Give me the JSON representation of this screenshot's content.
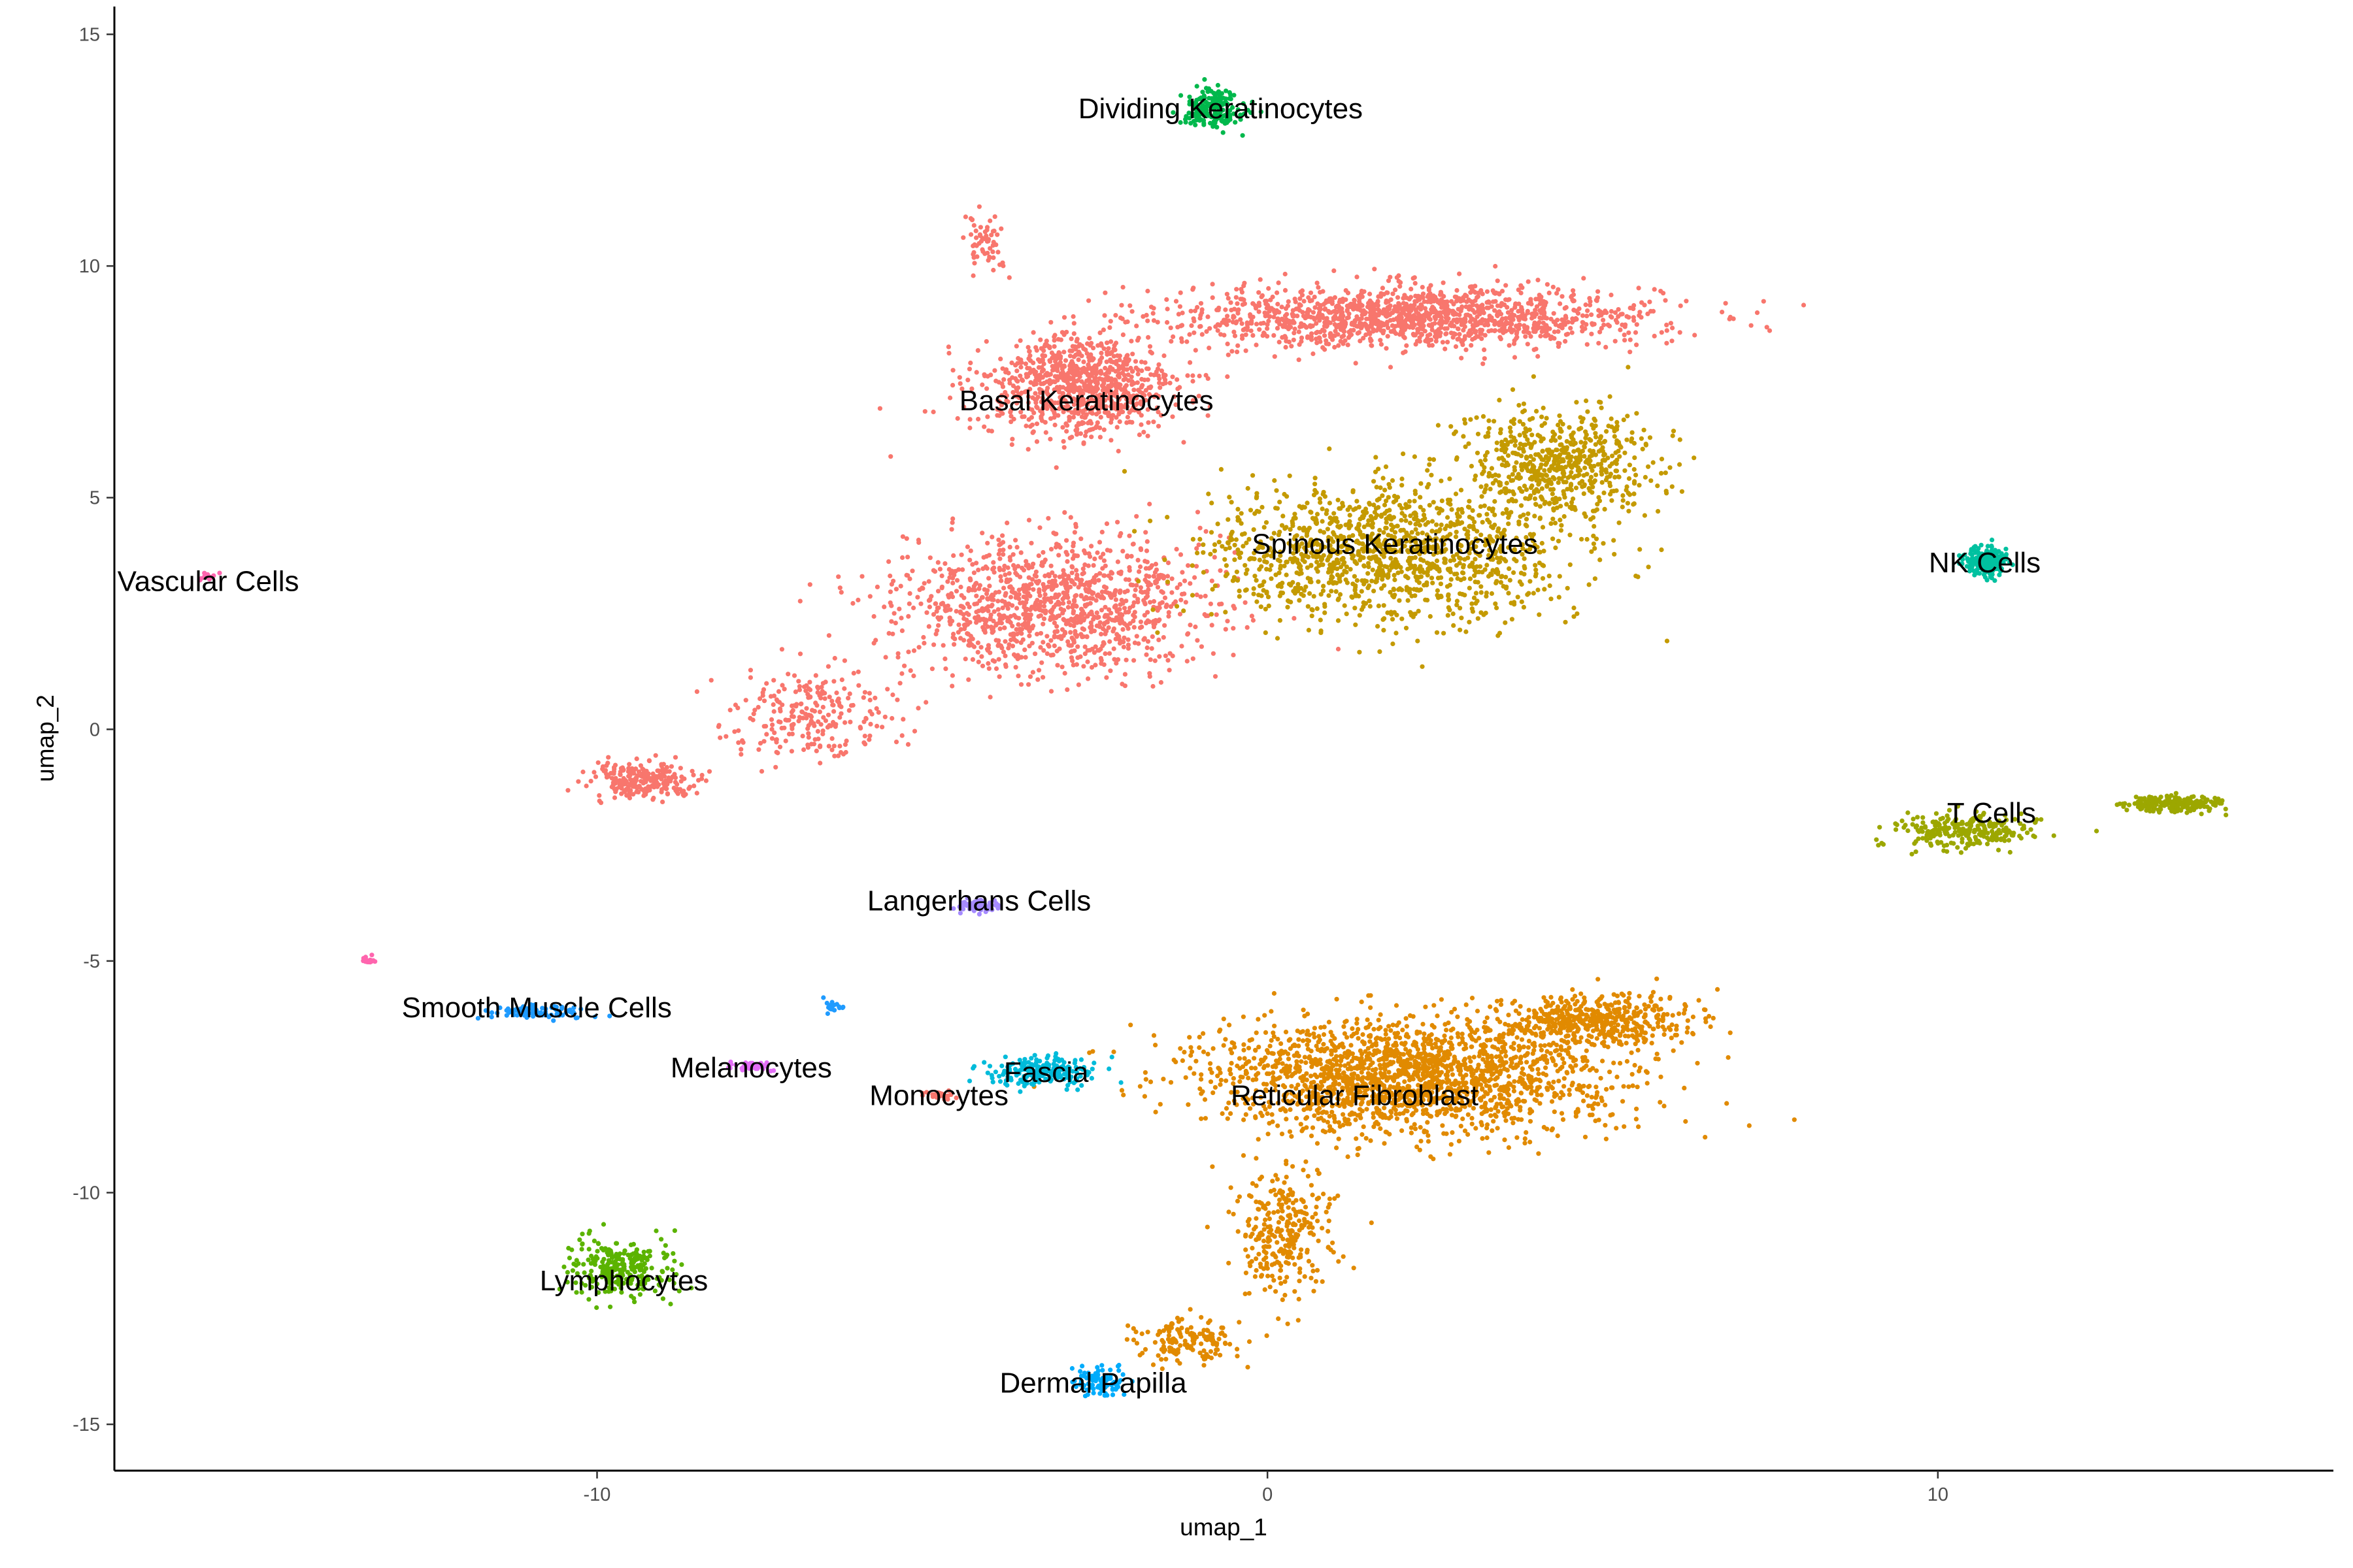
{
  "chart_data": {
    "type": "scatter",
    "title": "",
    "xlabel": "umap_1",
    "ylabel": "umap_2",
    "xlim": [
      -17.2,
      15.9
    ],
    "ylim": [
      -16.0,
      15.6
    ],
    "x_ticks": [
      -10,
      0,
      10
    ],
    "y_ticks": [
      15,
      10,
      5,
      0,
      -5,
      -10,
      -15
    ],
    "x_tick_labels": [
      "-10",
      "0",
      "10"
    ],
    "y_tick_labels": [
      "15",
      "10",
      "5",
      "0",
      "-5",
      "-10",
      "-15"
    ],
    "grid": false,
    "legend": "none",
    "clusters": [
      {
        "name": "Basal Keratinocytes",
        "color": "#F8766D",
        "label_x": -2.7,
        "label_y": 7.1,
        "regions": [
          {
            "cx": 2.2,
            "cy": 8.9,
            "sx": 3.0,
            "sy": 0.55,
            "n": 1400
          },
          {
            "cx": -2.8,
            "cy": 7.4,
            "sx": 1.2,
            "sy": 0.9,
            "n": 900
          },
          {
            "cx": -3.2,
            "cy": 2.7,
            "sx": 1.9,
            "sy": 1.2,
            "n": 1200
          },
          {
            "cx": -6.8,
            "cy": 0.4,
            "sx": 1.0,
            "sy": 0.8,
            "n": 250
          },
          {
            "cx": -9.3,
            "cy": -1.1,
            "sx": 0.7,
            "sy": 0.3,
            "n": 250
          },
          {
            "cx": -4.2,
            "cy": 10.5,
            "sx": 0.25,
            "sy": 0.6,
            "n": 60
          }
        ]
      },
      {
        "name": "Spinous Keratinocytes",
        "color": "#C49A00",
        "label_x": 1.9,
        "label_y": 4.0,
        "regions": [
          {
            "cx": 1.8,
            "cy": 3.8,
            "sx": 2.2,
            "sy": 1.2,
            "n": 1300
          },
          {
            "cx": 4.3,
            "cy": 5.7,
            "sx": 1.2,
            "sy": 1.0,
            "n": 600
          }
        ]
      },
      {
        "name": "Dividing Keratinocytes",
        "color": "#00B84C",
        "label_x": -0.7,
        "label_y": 13.4,
        "regions": [
          {
            "cx": -0.8,
            "cy": 13.4,
            "sx": 0.4,
            "sy": 0.35,
            "n": 180
          }
        ]
      },
      {
        "name": "NK Cells",
        "color": "#00C1A0",
        "label_x": 10.7,
        "label_y": 3.6,
        "regions": [
          {
            "cx": 10.7,
            "cy": 3.6,
            "sx": 0.25,
            "sy": 0.25,
            "n": 200
          }
        ]
      },
      {
        "name": "T Cells",
        "color": "#9CA700",
        "label_x": 10.8,
        "label_y": -1.8,
        "regions": [
          {
            "cx": 10.4,
            "cy": -2.2,
            "sx": 0.9,
            "sy": 0.3,
            "n": 250
          },
          {
            "cx": 13.5,
            "cy": -1.6,
            "sx": 0.6,
            "sy": 0.15,
            "n": 180
          }
        ]
      },
      {
        "name": "Reticular Fibroblast",
        "color": "#E18A00",
        "label_x": 1.3,
        "label_y": -7.9,
        "regions": [
          {
            "cx": 2.0,
            "cy": -7.5,
            "sx": 2.6,
            "sy": 1.0,
            "n": 1900
          },
          {
            "cx": 4.8,
            "cy": -6.3,
            "sx": 1.2,
            "sy": 0.5,
            "n": 500
          },
          {
            "cx": 0.2,
            "cy": -10.8,
            "sx": 0.6,
            "sy": 1.2,
            "n": 300
          },
          {
            "cx": -1.2,
            "cy": -13.2,
            "sx": 0.6,
            "sy": 0.4,
            "n": 150
          }
        ]
      },
      {
        "name": "Fascia",
        "color": "#00BBDA",
        "label_x": -3.3,
        "label_y": -7.4,
        "regions": [
          {
            "cx": -3.4,
            "cy": -7.4,
            "sx": 0.7,
            "sy": 0.25,
            "n": 200
          }
        ]
      },
      {
        "name": "Dermal Papilla",
        "color": "#00ACFC",
        "label_x": -2.6,
        "label_y": -14.1,
        "regions": [
          {
            "cx": -2.5,
            "cy": -14.1,
            "sx": 0.3,
            "sy": 0.3,
            "n": 90
          }
        ]
      },
      {
        "name": "Smooth Muscle Cells",
        "color": "#1F9BFF",
        "label_x": -10.9,
        "label_y": -6.0,
        "regions": [
          {
            "cx": -10.9,
            "cy": -6.1,
            "sx": 0.6,
            "sy": 0.12,
            "n": 90
          },
          {
            "cx": -6.5,
            "cy": -6.0,
            "sx": 0.1,
            "sy": 0.1,
            "n": 20
          }
        ]
      },
      {
        "name": "Lymphocytes",
        "color": "#5BB300",
        "label_x": -9.6,
        "label_y": -11.9,
        "regions": [
          {
            "cx": -9.6,
            "cy": -11.6,
            "sx": 0.7,
            "sy": 0.55,
            "n": 260
          }
        ]
      },
      {
        "name": "Langerhans Cells",
        "color": "#A58AFF",
        "label_x": -4.3,
        "label_y": -3.7,
        "regions": [
          {
            "cx": -4.3,
            "cy": -3.8,
            "sx": 0.3,
            "sy": 0.1,
            "n": 60
          }
        ]
      },
      {
        "name": "Melanocytes",
        "color": "#E36EF6",
        "label_x": -7.7,
        "label_y": -7.3,
        "regions": [
          {
            "cx": -7.7,
            "cy": -7.3,
            "sx": 0.25,
            "sy": 0.1,
            "n": 40
          }
        ]
      },
      {
        "name": "Monocytes",
        "color": "#F8766D",
        "label_x": -4.9,
        "label_y": -7.9,
        "regions": [
          {
            "cx": -4.9,
            "cy": -7.9,
            "sx": 0.2,
            "sy": 0.08,
            "n": 25
          }
        ]
      },
      {
        "name": "Vascular Cells",
        "color": "#FF65AE",
        "label_x": -15.8,
        "label_y": 3.2,
        "regions": [
          {
            "cx": -15.8,
            "cy": 3.3,
            "sx": 0.1,
            "sy": 0.1,
            "n": 15
          },
          {
            "cx": -13.4,
            "cy": -5.0,
            "sx": 0.1,
            "sy": 0.08,
            "n": 15
          }
        ]
      }
    ],
    "labels": [
      {
        "text": "Dividing Keratinocytes",
        "x": -0.7,
        "y": 13.4
      },
      {
        "text": "Basal Keratinocytes",
        "x": -2.7,
        "y": 7.1
      },
      {
        "text": "Spinous Keratinocytes",
        "x": 1.9,
        "y": 4.0
      },
      {
        "text": "NK Cells",
        "x": 10.7,
        "y": 3.6
      },
      {
        "text": "Vascular Cells",
        "x": -15.8,
        "y": 3.2
      },
      {
        "text": "T Cells",
        "x": 10.8,
        "y": -1.8
      },
      {
        "text": "Langerhans Cells",
        "x": -4.3,
        "y": -3.7
      },
      {
        "text": "Smooth Muscle Cells",
        "x": -10.9,
        "y": -6.0
      },
      {
        "text": "Melanocytes",
        "x": -7.7,
        "y": -7.3
      },
      {
        "text": "Fascia",
        "x": -3.3,
        "y": -7.4
      },
      {
        "text": "Monocytes",
        "x": -4.9,
        "y": -7.9
      },
      {
        "text": "Reticular Fibroblast",
        "x": 1.3,
        "y": -7.9
      },
      {
        "text": "Lymphocytes",
        "x": -9.6,
        "y": -11.9
      },
      {
        "text": "Dermal Papilla",
        "x": -2.6,
        "y": -14.1
      }
    ]
  }
}
